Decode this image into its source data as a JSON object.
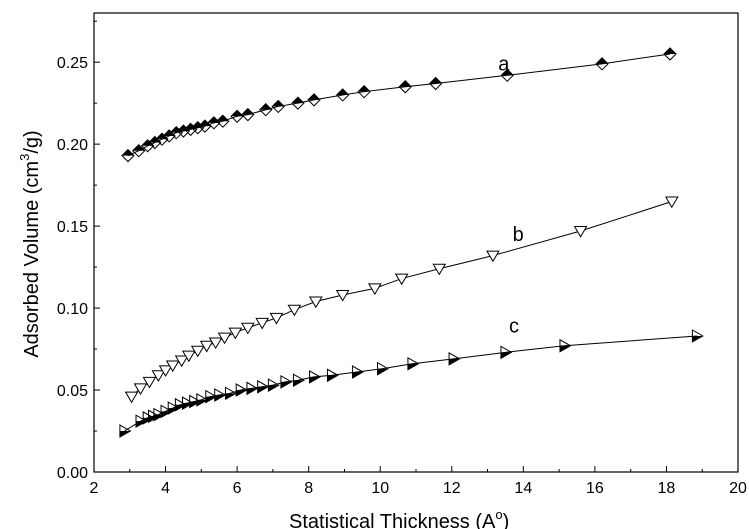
{
  "chart_data": {
    "type": "scatter",
    "title": "",
    "xlabel": "Statistical Thickness (A",
    "xlabel_sup": "o",
    "xlabel_close": ")",
    "ylabel_prefix": "Adsorbed Volume (cm",
    "ylabel_sup": "3",
    "ylabel_suffix": "/g)",
    "xlim": [
      2,
      20
    ],
    "ylim": [
      0.0,
      0.28
    ],
    "x_ticks": [
      2,
      4,
      6,
      8,
      10,
      12,
      14,
      16,
      18,
      20
    ],
    "y_ticks": [
      0.0,
      0.05,
      0.1,
      0.15,
      0.2,
      0.25
    ],
    "x_tick_labels": [
      "2",
      "4",
      "6",
      "8",
      "10",
      "12",
      "14",
      "16",
      "18",
      "20"
    ],
    "y_tick_labels": [
      "0.00",
      "0.05",
      "0.10",
      "0.15",
      "0.20",
      "0.25"
    ],
    "grid": false,
    "legend": "none",
    "series": [
      {
        "name": "a",
        "marker": "diamond-half-filled-top",
        "x": [
          2.95,
          3.25,
          3.5,
          3.7,
          3.9,
          4.1,
          4.3,
          4.5,
          4.7,
          4.9,
          5.1,
          5.35,
          5.6,
          6.0,
          6.3,
          6.8,
          7.15,
          7.7,
          8.15,
          8.95,
          9.55,
          10.7,
          11.55,
          13.55,
          16.2,
          18.1
        ],
        "y": [
          0.193,
          0.196,
          0.199,
          0.201,
          0.203,
          0.205,
          0.207,
          0.208,
          0.209,
          0.21,
          0.211,
          0.213,
          0.214,
          0.217,
          0.218,
          0.221,
          0.223,
          0.225,
          0.227,
          0.23,
          0.232,
          0.235,
          0.237,
          0.242,
          0.249,
          0.255
        ]
      },
      {
        "name": "b",
        "marker": "triangle-down-open",
        "x": [
          3.05,
          3.3,
          3.55,
          3.8,
          4.0,
          4.2,
          4.45,
          4.65,
          4.9,
          5.15,
          5.4,
          5.65,
          5.95,
          6.3,
          6.7,
          7.1,
          7.6,
          8.2,
          8.95,
          9.85,
          10.6,
          11.65,
          13.15,
          15.6,
          18.15
        ],
        "y": [
          0.046,
          0.051,
          0.055,
          0.059,
          0.062,
          0.065,
          0.068,
          0.071,
          0.074,
          0.077,
          0.079,
          0.082,
          0.085,
          0.088,
          0.091,
          0.094,
          0.099,
          0.104,
          0.108,
          0.112,
          0.118,
          0.124,
          0.132,
          0.147,
          0.165
        ]
      },
      {
        "name": "c",
        "marker": "triangle-right-half-filled",
        "x": [
          2.85,
          3.3,
          3.5,
          3.65,
          3.8,
          4.0,
          4.2,
          4.4,
          4.6,
          4.8,
          5.0,
          5.25,
          5.5,
          5.8,
          6.1,
          6.4,
          6.7,
          7.0,
          7.35,
          7.7,
          8.15,
          8.65,
          9.35,
          10.05,
          10.9,
          12.05,
          13.5,
          15.15,
          18.85
        ],
        "y": [
          0.025,
          0.031,
          0.033,
          0.034,
          0.035,
          0.037,
          0.039,
          0.041,
          0.042,
          0.043,
          0.044,
          0.046,
          0.047,
          0.048,
          0.05,
          0.051,
          0.052,
          0.053,
          0.055,
          0.056,
          0.058,
          0.059,
          0.061,
          0.063,
          0.066,
          0.069,
          0.073,
          0.077,
          0.083
        ]
      }
    ],
    "annotations": [
      {
        "text": "a",
        "x": 13.3,
        "y": 0.245
      },
      {
        "text": "b",
        "x": 13.7,
        "y": 0.141
      },
      {
        "text": "c",
        "x": 13.6,
        "y": 0.085
      }
    ]
  }
}
